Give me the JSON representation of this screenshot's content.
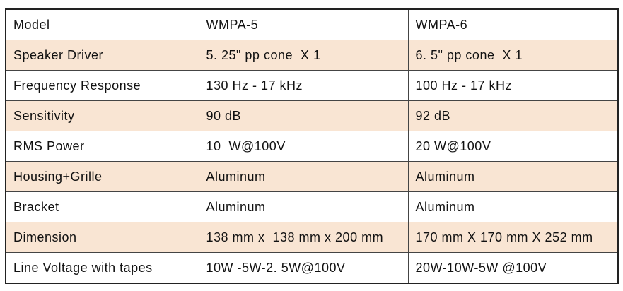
{
  "table": {
    "rows": [
      [
        "Model",
        "WMPA-5",
        "WMPA-6"
      ],
      [
        "Speaker Driver",
        "5. 25\" pp cone  X 1",
        "6. 5\" pp cone  X 1"
      ],
      [
        "Frequency Response",
        "130 Hz - 17 kHz",
        "100 Hz - 17 kHz"
      ],
      [
        "Sensitivity",
        "90 dB",
        "92 dB"
      ],
      [
        "RMS Power",
        "10  W@100V",
        "20 W@100V"
      ],
      [
        "Housing+Grille",
        "Aluminum",
        "Aluminum"
      ],
      [
        "Bracket",
        "Aluminum",
        "Aluminum"
      ],
      [
        "Dimension",
        "138 mm x  138 mm x 200 mm",
        "170 mm X 170 mm X 252 mm"
      ],
      [
        "Line Voltage with tapes",
        "10W -5W-2. 5W@100V",
        "20W-10W-5W @100V"
      ]
    ]
  }
}
